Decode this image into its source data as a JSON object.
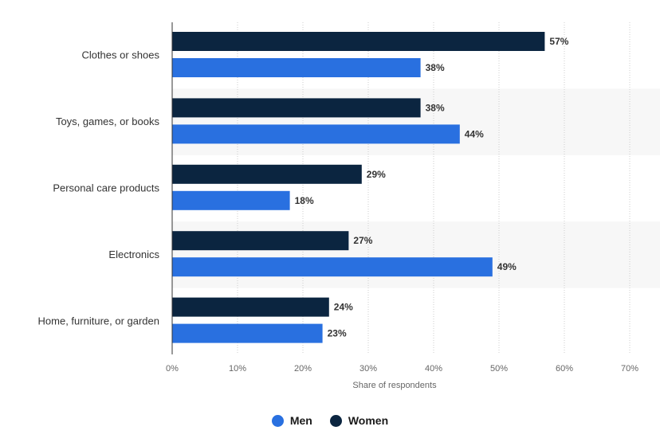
{
  "chart_data": {
    "type": "bar",
    "orientation": "horizontal",
    "categories": [
      "Clothes or shoes",
      "Toys, games, or books",
      "Personal care products",
      "Electronics",
      "Home, furniture, or garden"
    ],
    "series": [
      {
        "name": "Women",
        "color": "#0b2540",
        "values": [
          57,
          38,
          29,
          27,
          24
        ]
      },
      {
        "name": "Men",
        "color": "#2970e0",
        "values": [
          38,
          44,
          18,
          49,
          23
        ]
      }
    ],
    "value_suffix": "%",
    "xlabel": "Share of respondents",
    "ylabel": "",
    "xlim": [
      0,
      70
    ],
    "xticks": [
      0,
      10,
      20,
      30,
      40,
      50,
      60,
      70
    ],
    "xtick_labels": [
      "0%",
      "10%",
      "20%",
      "30%",
      "40%",
      "50%",
      "60%",
      "70%"
    ],
    "grid": "vertical dotted",
    "band_color": "#f7f7f7",
    "legend_position": "bottom"
  },
  "legend": {
    "items": [
      {
        "label": "Men",
        "color": "#2970e0"
      },
      {
        "label": "Women",
        "color": "#0b2540"
      }
    ]
  }
}
